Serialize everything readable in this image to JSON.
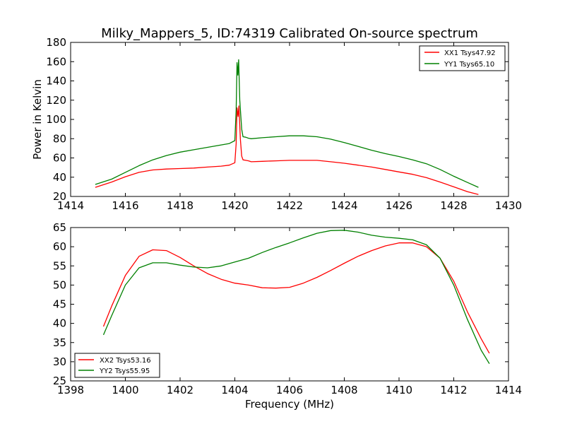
{
  "chart_data": [
    {
      "type": "line",
      "title": "Milky_Mappers_5, ID:74319 Calibrated On-source spectrum",
      "xlabel": "",
      "ylabel": "Power in Kelvin",
      "xlim": [
        1414,
        1430
      ],
      "ylim": [
        20,
        180
      ],
      "xticks": [
        1414,
        1416,
        1418,
        1420,
        1422,
        1424,
        1426,
        1428,
        1430
      ],
      "yticks": [
        20,
        40,
        60,
        80,
        100,
        120,
        140,
        160,
        180
      ],
      "grid": false,
      "legend_position": "top-right",
      "series": [
        {
          "name": "XX1 Tsys47.92",
          "color": "#ff0000",
          "points": [
            [
              1414.9,
              29.5
            ],
            [
              1415.5,
              35
            ],
            [
              1416,
              40.5
            ],
            [
              1416.5,
              45
            ],
            [
              1417,
              47.5
            ],
            [
              1417.5,
              48.5
            ],
            [
              1418,
              49
            ],
            [
              1418.5,
              49.5
            ],
            [
              1419,
              50.5
            ],
            [
              1419.5,
              51.5
            ],
            [
              1419.8,
              52.5
            ],
            [
              1420.0,
              55
            ],
            [
              1420.05,
              75
            ],
            [
              1420.08,
              112
            ],
            [
              1420.12,
              103
            ],
            [
              1420.15,
              114
            ],
            [
              1420.2,
              80
            ],
            [
              1420.25,
              62
            ],
            [
              1420.3,
              58
            ],
            [
              1420.4,
              57.5
            ],
            [
              1420.5,
              57
            ],
            [
              1420.6,
              56
            ],
            [
              1421,
              56.5
            ],
            [
              1421.5,
              57
            ],
            [
              1422,
              57.5
            ],
            [
              1422.5,
              57.5
            ],
            [
              1423,
              57.5
            ],
            [
              1423.5,
              56
            ],
            [
              1424,
              54.5
            ],
            [
              1424.5,
              52.5
            ],
            [
              1425,
              50.5
            ],
            [
              1425.5,
              48
            ],
            [
              1426,
              45.5
            ],
            [
              1426.5,
              43
            ],
            [
              1427,
              39.5
            ],
            [
              1427.5,
              35
            ],
            [
              1428,
              30
            ],
            [
              1428.5,
              25
            ],
            [
              1428.9,
              22
            ]
          ]
        },
        {
          "name": "YY1 Tsys65.10",
          "color": "#008000",
          "points": [
            [
              1414.9,
              32.5
            ],
            [
              1415.5,
              38
            ],
            [
              1416,
              45
            ],
            [
              1416.5,
              52
            ],
            [
              1417,
              58
            ],
            [
              1417.5,
              62.5
            ],
            [
              1418,
              66
            ],
            [
              1418.5,
              68.5
            ],
            [
              1419,
              71
            ],
            [
              1419.5,
              73.5
            ],
            [
              1419.8,
              75
            ],
            [
              1420.0,
              78
            ],
            [
              1420.05,
              110
            ],
            [
              1420.08,
              159
            ],
            [
              1420.11,
              146
            ],
            [
              1420.14,
              162
            ],
            [
              1420.18,
              120
            ],
            [
              1420.25,
              90
            ],
            [
              1420.3,
              82
            ],
            [
              1420.4,
              81.5
            ],
            [
              1420.5,
              80.5
            ],
            [
              1420.6,
              80
            ],
            [
              1421,
              81
            ],
            [
              1421.5,
              82
            ],
            [
              1422,
              83
            ],
            [
              1422.5,
              83
            ],
            [
              1423,
              82
            ],
            [
              1423.5,
              79.5
            ],
            [
              1424,
              76
            ],
            [
              1424.5,
              72
            ],
            [
              1425,
              68
            ],
            [
              1425.5,
              64.5
            ],
            [
              1426,
              61.5
            ],
            [
              1426.5,
              58
            ],
            [
              1427,
              54
            ],
            [
              1427.5,
              48
            ],
            [
              1428,
              41
            ],
            [
              1428.5,
              34.5
            ],
            [
              1428.9,
              29.5
            ]
          ]
        }
      ]
    },
    {
      "type": "line",
      "title": "",
      "xlabel": "Frequency (MHz)",
      "ylabel": "",
      "xlim": [
        1398,
        1414
      ],
      "ylim": [
        25,
        65
      ],
      "xticks": [
        1398,
        1400,
        1402,
        1404,
        1406,
        1408,
        1410,
        1412,
        1414
      ],
      "yticks": [
        25,
        30,
        35,
        40,
        45,
        50,
        55,
        60,
        65
      ],
      "grid": false,
      "legend_position": "bottom-left",
      "series": [
        {
          "name": "XX2 Tsys53.16",
          "color": "#ff0000",
          "points": [
            [
              1399.2,
              39.2
            ],
            [
              1399.5,
              44.5
            ],
            [
              1400,
              52.5
            ],
            [
              1400.5,
              57.5
            ],
            [
              1401,
              59.2
            ],
            [
              1401.5,
              59
            ],
            [
              1402,
              57.2
            ],
            [
              1402.5,
              55
            ],
            [
              1403,
              53
            ],
            [
              1403.5,
              51.5
            ],
            [
              1404,
              50.5
            ],
            [
              1404.5,
              50
            ],
            [
              1405,
              49.3
            ],
            [
              1405.5,
              49.2
            ],
            [
              1406,
              49.4
            ],
            [
              1406.5,
              50.5
            ],
            [
              1407,
              52
            ],
            [
              1407.5,
              53.8
            ],
            [
              1408,
              55.7
            ],
            [
              1408.5,
              57.5
            ],
            [
              1409,
              59
            ],
            [
              1409.5,
              60.2
            ],
            [
              1410,
              61
            ],
            [
              1410.5,
              61
            ],
            [
              1411,
              60
            ],
            [
              1411.5,
              57
            ],
            [
              1412,
              51
            ],
            [
              1412.5,
              43
            ],
            [
              1413,
              36
            ],
            [
              1413.3,
              32.2
            ]
          ]
        },
        {
          "name": "YY2 Tsys55.95",
          "color": "#008000",
          "points": [
            [
              1399.2,
              37
            ],
            [
              1399.5,
              42
            ],
            [
              1400,
              50
            ],
            [
              1400.5,
              54.5
            ],
            [
              1401,
              55.8
            ],
            [
              1401.5,
              55.8
            ],
            [
              1402,
              55.2
            ],
            [
              1402.5,
              54.7
            ],
            [
              1403,
              54.5
            ],
            [
              1403.5,
              55
            ],
            [
              1404,
              56
            ],
            [
              1404.5,
              57
            ],
            [
              1405,
              58.5
            ],
            [
              1405.5,
              59.8
            ],
            [
              1406,
              61
            ],
            [
              1406.5,
              62.3
            ],
            [
              1407,
              63.5
            ],
            [
              1407.5,
              64.2
            ],
            [
              1408,
              64.3
            ],
            [
              1408.5,
              63.8
            ],
            [
              1409,
              63
            ],
            [
              1409.5,
              62.5
            ],
            [
              1410,
              62.2
            ],
            [
              1410.5,
              61.8
            ],
            [
              1411,
              60.5
            ],
            [
              1411.5,
              57
            ],
            [
              1412,
              50
            ],
            [
              1412.5,
              41
            ],
            [
              1413,
              33
            ],
            [
              1413.3,
              29.5
            ]
          ]
        }
      ]
    }
  ]
}
